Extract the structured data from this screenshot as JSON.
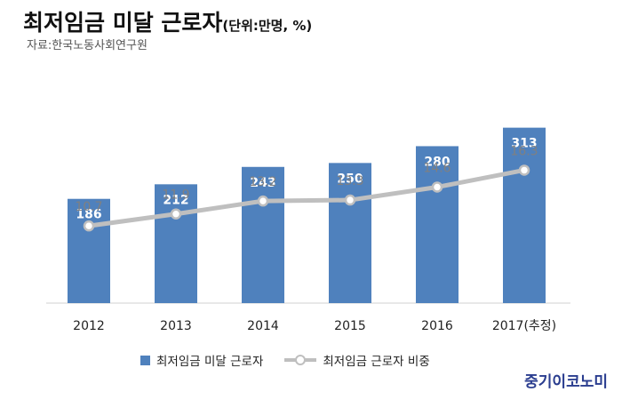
{
  "header": {
    "title": "최저임금 미달 근로자",
    "unit": "(단위:만명, %)",
    "source": "자료:한국노동사회연구원"
  },
  "watermark": "중기이코노미",
  "colors": {
    "bar": "#4f81bd",
    "line": "#bfbfbf",
    "line_label": "#808080"
  },
  "chart_data": {
    "type": "bar",
    "categories": [
      "2012",
      "2013",
      "2014",
      "2015",
      "2016",
      "2017(추정)"
    ],
    "series": [
      {
        "name": "최저임금 미달 근로자",
        "type": "bar",
        "values": [
          186,
          212,
          243,
          250,
          280,
          313
        ]
      },
      {
        "name": "최저임금 근로자 비중",
        "type": "line",
        "values": [
          10.7,
          11.9,
          13.2,
          13.3,
          14.6,
          16.3
        ]
      }
    ],
    "legend": "bottom",
    "grid": false
  }
}
